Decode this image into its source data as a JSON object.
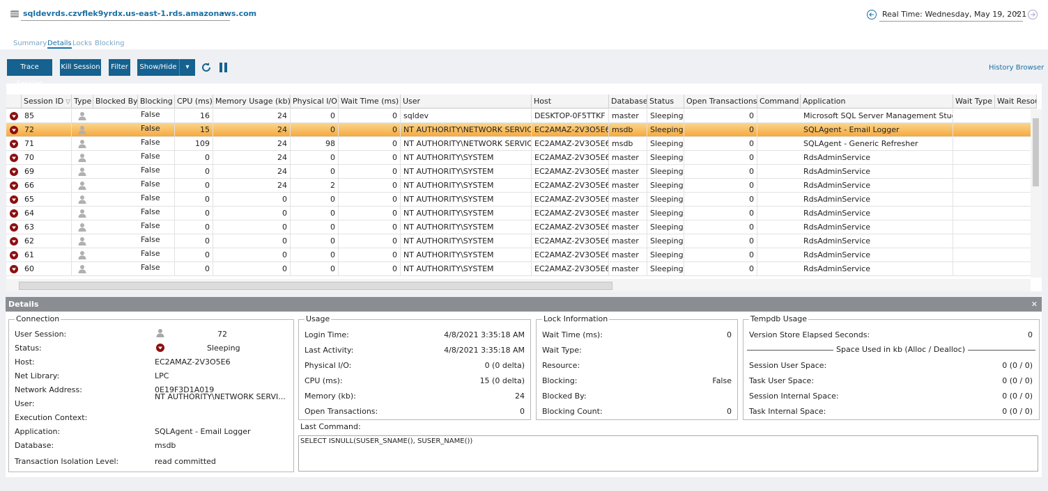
{
  "header": {
    "server": "sqldevrds.czvflek9yrdx.us-east-1.rds.amazonaws.com",
    "realtime": "Real Time: Wednesday, May 19, 2021"
  },
  "tabs": [
    "Summary",
    "Details",
    "Locks",
    "Blocking"
  ],
  "toolbar": {
    "buttons": [
      "Trace Session",
      "Kill Session",
      "Filter",
      "Show/Hide"
    ],
    "history_browser": "History Browser"
  },
  "table": {
    "columns": [
      "Session ID",
      "Type",
      "Blocked By",
      "Blocking",
      "CPU (ms)",
      "Memory Usage (kb)",
      "Physical I/O",
      "Wait Time (ms)",
      "User",
      "Host",
      "Database",
      "Status",
      "Open Transactions",
      "Command",
      "Application",
      "Wait Type",
      "Wait Resource"
    ],
    "rows": [
      {
        "session_id": 85,
        "blocking": "False",
        "cpu": 16,
        "memory": 24,
        "physical_io": 0,
        "wait_time": 0,
        "user": "sqldev",
        "host": "DESKTOP-0F5TTKF",
        "database": "master",
        "status": "Sleeping",
        "open_transactions": 0,
        "application": "Microsoft SQL Server Management Studio"
      },
      {
        "session_id": 72,
        "blocking": "False",
        "cpu": 15,
        "memory": 24,
        "physical_io": 0,
        "wait_time": 0,
        "user": "NT AUTHORITY\\NETWORK SERVICE",
        "host": "EC2AMAZ-2V3O5E6",
        "database": "msdb",
        "status": "Sleeping",
        "open_transactions": 0,
        "application": "SQLAgent - Email Logger"
      },
      {
        "session_id": 71,
        "blocking": "False",
        "cpu": 109,
        "memory": 24,
        "physical_io": 98,
        "wait_time": 0,
        "user": "NT AUTHORITY\\NETWORK SERVICE",
        "host": "EC2AMAZ-2V3O5E6",
        "database": "msdb",
        "status": "Sleeping",
        "open_transactions": 0,
        "application": "SQLAgent - Generic Refresher"
      },
      {
        "session_id": 70,
        "blocking": "False",
        "cpu": 0,
        "memory": 24,
        "physical_io": 0,
        "wait_time": 0,
        "user": "NT AUTHORITY\\SYSTEM",
        "host": "EC2AMAZ-2V3O5E6",
        "database": "master",
        "status": "Sleeping",
        "open_transactions": 0,
        "application": "RdsAdminService"
      },
      {
        "session_id": 69,
        "blocking": "False",
        "cpu": 0,
        "memory": 24,
        "physical_io": 0,
        "wait_time": 0,
        "user": "NT AUTHORITY\\SYSTEM",
        "host": "EC2AMAZ-2V3O5E6",
        "database": "master",
        "status": "Sleeping",
        "open_transactions": 0,
        "application": "RdsAdminService"
      },
      {
        "session_id": 66,
        "blocking": "False",
        "cpu": 0,
        "memory": 24,
        "physical_io": 2,
        "wait_time": 0,
        "user": "NT AUTHORITY\\SYSTEM",
        "host": "EC2AMAZ-2V3O5E6",
        "database": "master",
        "status": "Sleeping",
        "open_transactions": 0,
        "application": "RdsAdminService"
      },
      {
        "session_id": 65,
        "blocking": "False",
        "cpu": 0,
        "memory": 0,
        "physical_io": 0,
        "wait_time": 0,
        "user": "NT AUTHORITY\\SYSTEM",
        "host": "EC2AMAZ-2V3O5E6",
        "database": "master",
        "status": "Sleeping",
        "open_transactions": 0,
        "application": "RdsAdminService"
      },
      {
        "session_id": 64,
        "blocking": "False",
        "cpu": 0,
        "memory": 0,
        "physical_io": 0,
        "wait_time": 0,
        "user": "NT AUTHORITY\\SYSTEM",
        "host": "EC2AMAZ-2V3O5E6",
        "database": "master",
        "status": "Sleeping",
        "open_transactions": 0,
        "application": "RdsAdminService"
      },
      {
        "session_id": 63,
        "blocking": "False",
        "cpu": 0,
        "memory": 0,
        "physical_io": 0,
        "wait_time": 0,
        "user": "NT AUTHORITY\\SYSTEM",
        "host": "EC2AMAZ-2V3O5E6",
        "database": "master",
        "status": "Sleeping",
        "open_transactions": 0,
        "application": "RdsAdminService"
      },
      {
        "session_id": 62,
        "blocking": "False",
        "cpu": 0,
        "memory": 0,
        "physical_io": 0,
        "wait_time": 0,
        "user": "NT AUTHORITY\\SYSTEM",
        "host": "EC2AMAZ-2V3O5E6",
        "database": "master",
        "status": "Sleeping",
        "open_transactions": 0,
        "application": "RdsAdminService"
      },
      {
        "session_id": 61,
        "blocking": "False",
        "cpu": 0,
        "memory": 0,
        "physical_io": 0,
        "wait_time": 0,
        "user": "NT AUTHORITY\\SYSTEM",
        "host": "EC2AMAZ-2V3O5E6",
        "database": "master",
        "status": "Sleeping",
        "open_transactions": 0,
        "application": "RdsAdminService"
      },
      {
        "session_id": 60,
        "blocking": "False",
        "cpu": 0,
        "memory": 0,
        "physical_io": 0,
        "wait_time": 0,
        "user": "NT AUTHORITY\\SYSTEM",
        "host": "EC2AMAZ-2V3O5E6",
        "database": "master",
        "status": "Sleeping",
        "open_transactions": 0,
        "application": "RdsAdminService"
      }
    ]
  },
  "details": {
    "title": "Details",
    "connection": {
      "title": "Connection",
      "items": [
        {
          "label": "User Session:",
          "value": 72
        },
        {
          "label": "Status:",
          "value": "Sleeping"
        },
        {
          "label": "Host:",
          "value": "EC2AMAZ-2V3O5E6"
        },
        {
          "label": "Net Library:",
          "value": "LPC"
        },
        {
          "label": "Network Address:",
          "value": "0E19F3D1A019"
        },
        {
          "label": "User:",
          "value": "NT AUTHORITY\\NETWORK SERVI..."
        },
        {
          "label": "Execution Context:"
        },
        {
          "label": "Application:",
          "value": "SQLAgent - Email Logger"
        },
        {
          "label": "Database:",
          "value": "msdb"
        },
        {
          "label": "Transaction Isolation Level:",
          "value": "read committed"
        }
      ]
    },
    "usage": {
      "title": "Usage",
      "items": [
        {
          "label": "Login Time:",
          "value": "4/8/2021 3:35:18 AM"
        },
        {
          "label": "Last Activity:",
          "value": "4/8/2021 3:35:18 AM"
        },
        {
          "label": "Physical I/O:",
          "value": "0  (0 delta)"
        },
        {
          "label": "CPU (ms):",
          "value": "15  (0 delta)"
        },
        {
          "label": "Memory (kb):",
          "value": 24
        },
        {
          "label": "Open Transactions:",
          "value": 0
        }
      ]
    },
    "lock": {
      "title": "Lock Information",
      "items": [
        {
          "label": "Wait Time (ms):",
          "value": 0
        },
        {
          "label": "Wait Type:"
        },
        {
          "label": "Resource:"
        },
        {
          "label": "Blocking:",
          "value": "False"
        },
        {
          "label": "Blocked By:"
        },
        {
          "label": "Blocking Count:",
          "value": 0
        }
      ]
    },
    "tempdb": {
      "title": "Tempdb Usage",
      "items": [
        {
          "label": "Version Store Elapsed Seconds:",
          "value": 0
        },
        {
          "label": "Space Used in kb (Alloc / Dealloc)"
        },
        {
          "label": "Session User Space:",
          "value": "0 (0 / 0)"
        },
        {
          "label": "Task User Space:",
          "value": "0 (0 / 0)"
        },
        {
          "label": "Session Internal Space:",
          "value": "0 (0 / 0)"
        },
        {
          "label": "Task Internal Space:",
          "value": "0 (0 / 0)"
        }
      ]
    },
    "last_command": {
      "label": "Last Command:",
      "text": "SELECT ISNULL(SUSER_SNAME(), SUSER_NAME())"
    }
  }
}
